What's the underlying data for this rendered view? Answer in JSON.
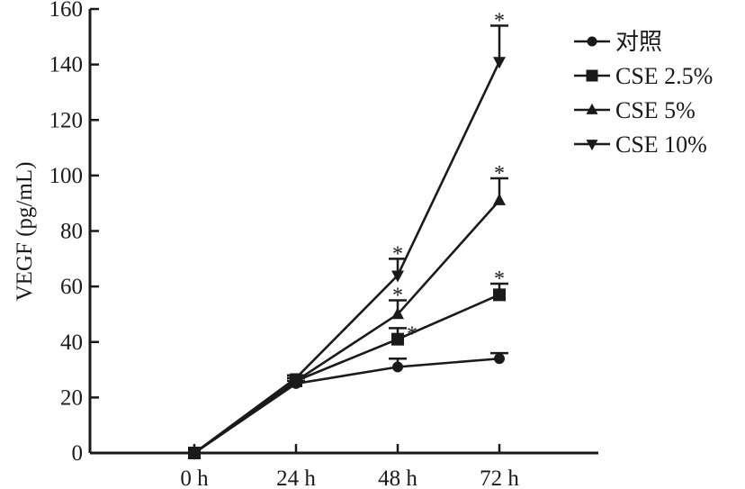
{
  "chart_data": {
    "type": "line",
    "categories": [
      "0 h",
      "24 h",
      "48 h",
      "72 h"
    ],
    "ylabel": "VEGF (pg/mL)",
    "xlabel": "",
    "ylim": [
      0,
      160
    ],
    "yticks": [
      0,
      20,
      40,
      60,
      80,
      100,
      120,
      140,
      160
    ],
    "grid": false,
    "legend_position": "top-right",
    "series": [
      {
        "name": "对照",
        "marker": "circle",
        "values": [
          0,
          25,
          31,
          34
        ],
        "errors": [
          0,
          1,
          3,
          2
        ],
        "significance": [
          "",
          "",
          "",
          ""
        ]
      },
      {
        "name": "CSE 2.5%",
        "marker": "square",
        "values": [
          0,
          26,
          41,
          57
        ],
        "errors": [
          0,
          1,
          4,
          4
        ],
        "significance": [
          "",
          "",
          "*",
          "*"
        ]
      },
      {
        "name": "CSE 5%",
        "marker": "triangle-up",
        "values": [
          0,
          26,
          50,
          91
        ],
        "errors": [
          0,
          1,
          5,
          8
        ],
        "significance": [
          "",
          "",
          "*",
          "*"
        ]
      },
      {
        "name": "CSE 10%",
        "marker": "triangle-down",
        "values": [
          0,
          27,
          64,
          141
        ],
        "errors": [
          0,
          1,
          6,
          13
        ],
        "significance": [
          "",
          "",
          "*",
          "*"
        ]
      }
    ]
  }
}
